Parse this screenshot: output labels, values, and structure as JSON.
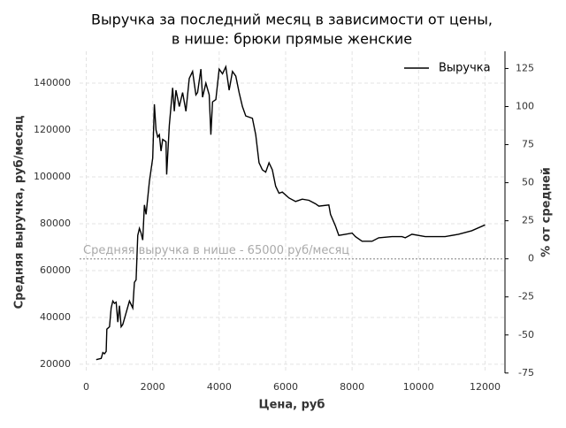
{
  "chart_data": {
    "type": "line",
    "title": "Выручка за последний месяц в зависимости от цены,",
    "subtitle": "в нише: брюки прямые женские",
    "x_label": "Цена, руб",
    "y_label": "Средняя выручка, руб/месяц",
    "y2_label": "% от средней",
    "x": [
      300,
      450,
      500,
      550,
      600,
      620,
      700,
      750,
      800,
      850,
      900,
      950,
      1000,
      1050,
      1100,
      1200,
      1300,
      1400,
      1450,
      1500,
      1550,
      1600,
      1650,
      1700,
      1750,
      1800,
      1900,
      2000,
      2050,
      2100,
      2150,
      2200,
      2250,
      2300,
      2400,
      2420,
      2500,
      2600,
      2650,
      2700,
      2800,
      2900,
      3000,
      3100,
      3200,
      3300,
      3350,
      3450,
      3500,
      3600,
      3700,
      3750,
      3800,
      3900,
      4000,
      4100,
      4200,
      4300,
      4400,
      4500,
      4600,
      4700,
      4800,
      5000,
      5100,
      5200,
      5300,
      5400,
      5500,
      5600,
      5700,
      5800,
      5900,
      6100,
      6300,
      6500,
      6700,
      6900,
      7000,
      7300,
      7350,
      7500,
      7600,
      7800,
      8000,
      8100,
      8300,
      8600,
      8800,
      9200,
      9500,
      9600,
      9800,
      10200,
      10800,
      11200,
      11600,
      12000
    ],
    "series": [
      {
        "name": "Выручка",
        "color": "#000000",
        "values": [
          22000,
          22500,
          25000,
          24500,
          25500,
          35000,
          36000,
          44000,
          47000,
          46000,
          46500,
          38000,
          45000,
          36000,
          37000,
          42000,
          47000,
          44000,
          55000,
          56000,
          75000,
          78000,
          76000,
          73000,
          88000,
          84000,
          98000,
          108000,
          131000,
          120000,
          117000,
          118000,
          111000,
          116000,
          115000,
          101000,
          122000,
          138000,
          128000,
          137000,
          130000,
          136000,
          128000,
          142000,
          145000,
          135000,
          136000,
          146000,
          134000,
          140000,
          135000,
          118000,
          132000,
          133000,
          146000,
          144000,
          147000,
          137000,
          145000,
          143000,
          136000,
          130000,
          126000,
          125000,
          118000,
          106000,
          103000,
          102000,
          106000,
          103000,
          96000,
          93000,
          93500,
          91000,
          89500,
          90500,
          90000,
          88500,
          87500,
          88000,
          84000,
          79000,
          75000,
          75500,
          76000,
          74500,
          72500,
          72500,
          74000,
          74500,
          74500,
          74000,
          75500,
          74500,
          74500,
          75500,
          77000,
          79500
        ]
      }
    ],
    "reference_line": {
      "value": 65000,
      "label": "Средняя выручка в нише - 65000 руб/месяц"
    },
    "xlim": [
      -200,
      12600
    ],
    "xticks": [
      0,
      2000,
      4000,
      6000,
      8000,
      10000,
      12000
    ],
    "ylim": [
      16200,
      153600
    ],
    "yticks": [
      20000,
      40000,
      60000,
      80000,
      100000,
      120000,
      140000
    ],
    "y2lim": [
      -75.1,
      136.3
    ],
    "y2ticks": [
      -75,
      -50,
      -25,
      0,
      25,
      50,
      75,
      100,
      125
    ],
    "grid": true,
    "legend": "upper right"
  }
}
